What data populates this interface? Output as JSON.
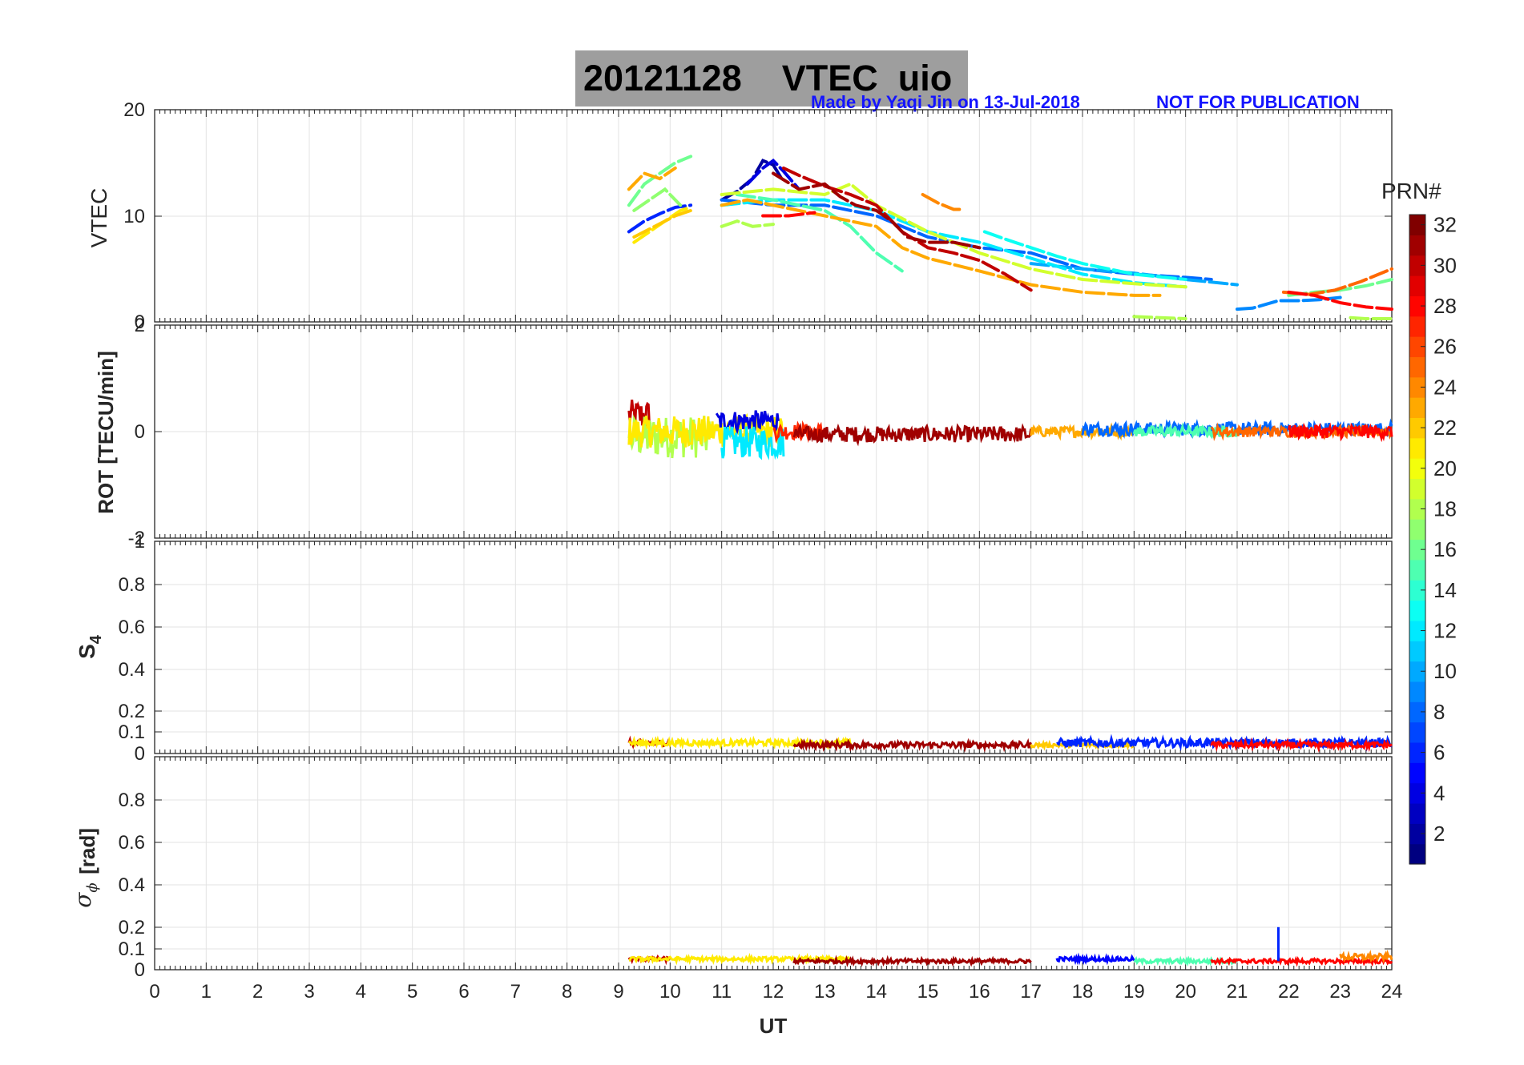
{
  "header": {
    "title": "20121128    VTEC  uio",
    "credit": "Made by Yaqi Jin on 13-Jul-2018",
    "notice": "NOT FOR PUBLICATION",
    "credit_color": "#1414ff",
    "title_box_color": "#9e9e9e"
  },
  "chart_data": {
    "type": "line",
    "description_colorbar": "color encodes GPS PRN number (jet colormap)",
    "xlabel": "UT",
    "xlim": [
      0,
      24
    ],
    "xticks": [
      "0",
      "1",
      "2",
      "3",
      "4",
      "5",
      "6",
      "7",
      "8",
      "9",
      "10",
      "11",
      "12",
      "13",
      "14",
      "15",
      "16",
      "17",
      "18",
      "19",
      "20",
      "21",
      "22",
      "23",
      "24"
    ],
    "colorbar": {
      "label": "PRN#",
      "range": [
        1,
        32
      ],
      "ticks": [
        "2",
        "4",
        "6",
        "8",
        "10",
        "12",
        "14",
        "16",
        "18",
        "20",
        "22",
        "24",
        "26",
        "28",
        "30",
        "32"
      ],
      "colormap": "jet"
    },
    "panels": [
      {
        "name": "VTEC",
        "ylabel": "VTEC",
        "ylim": [
          0,
          20
        ],
        "yticks": [
          "0",
          "10",
          "20"
        ],
        "grid": true,
        "series": [
          {
            "prn": 2,
            "x": [
              11.0,
              11.3,
              11.6,
              11.8,
              12.0,
              12.2
            ],
            "y": [
              11.5,
              12.3,
              13.5,
              15.2,
              14.8,
              13.2
            ]
          },
          {
            "prn": 4,
            "x": [
              11.5,
              11.8,
              12.0,
              12.2,
              12.5
            ],
            "y": [
              13.0,
              14.5,
              15.2,
              14.2,
              12.5
            ]
          },
          {
            "prn": 6,
            "x": [
              9.2,
              9.5,
              9.8,
              10.1,
              10.4
            ],
            "y": [
              8.5,
              9.5,
              10.2,
              10.8,
              11.0
            ]
          },
          {
            "prn": 8,
            "x": [
              11.0,
              12.0,
              13.0,
              14.0,
              15.0,
              16.0,
              17.0,
              18.0,
              19.0,
              20.0,
              20.5
            ],
            "y": [
              11.5,
              11.0,
              11.0,
              10.0,
              8.0,
              7.0,
              6.5,
              5.0,
              4.5,
              4.2,
              4.0
            ]
          },
          {
            "prn": 9,
            "x": [
              21.0,
              21.3,
              21.8,
              22.2,
              22.6,
              23.0
            ],
            "y": [
              1.2,
              1.3,
              2.0,
              2.0,
              2.1,
              2.3
            ]
          },
          {
            "prn": 10,
            "x": [
              17.0,
              18.0,
              19.0,
              20.0,
              21.0
            ],
            "y": [
              5.5,
              5.0,
              4.6,
              4.0,
              3.5
            ]
          },
          {
            "prn": 12,
            "x": [
              11.0,
              12.0,
              13.0,
              14.0,
              15.0,
              16.0,
              17.0,
              18.0,
              19.0,
              20.0
            ],
            "y": [
              11.0,
              11.5,
              11.5,
              10.5,
              8.5,
              7.5,
              6.0,
              4.5,
              3.7,
              3.3
            ]
          },
          {
            "prn": 13,
            "x": [
              16.1,
              16.5,
              17.0,
              17.5,
              18.0,
              19.0,
              20.0
            ],
            "y": [
              8.5,
              7.8,
              7.0,
              6.2,
              5.5,
              4.5,
              4.0
            ]
          },
          {
            "prn": 15,
            "x": [
              11.3,
              12.0,
              13.0,
              13.5,
              14.0,
              14.5
            ],
            "y": [
              12.0,
              11.5,
              10.5,
              9.0,
              6.5,
              4.8
            ]
          },
          {
            "prn": 16,
            "x": [
              9.2,
              9.5,
              9.8,
              10.1,
              10.4
            ],
            "y": [
              11.0,
              13.0,
              14.0,
              15.0,
              15.6
            ]
          },
          {
            "prn": 17,
            "x": [
              9.3,
              9.6,
              9.9,
              10.2
            ],
            "y": [
              10.5,
              11.5,
              12.5,
              11.0
            ]
          },
          {
            "prn": 18,
            "x": [
              11.0,
              11.3,
              11.6,
              12.0
            ],
            "y": [
              9.0,
              9.5,
              9.0,
              9.2
            ]
          },
          {
            "prn": 18,
            "x": [
              19.0,
              19.5,
              20.0
            ],
            "y": [
              0.5,
              0.4,
              0.3
            ]
          },
          {
            "prn": 18,
            "x": [
              23.2,
              23.5,
              24.0
            ],
            "y": [
              0.4,
              0.3,
              0.3
            ]
          },
          {
            "prn": 19,
            "x": [
              11.0,
              12.0,
              13.0,
              13.5,
              14.0,
              15.0,
              16.0,
              17.0,
              18.0,
              19.0,
              20.0
            ],
            "y": [
              12.0,
              12.5,
              12.0,
              13.0,
              11.0,
              8.5,
              6.5,
              5.0,
              4.0,
              3.6,
              3.3
            ]
          },
          {
            "prn": 16,
            "x": [
              22.0,
              22.5,
              23.0,
              23.5,
              24.0
            ],
            "y": [
              2.5,
              2.8,
              3.0,
              3.4,
              4.0
            ]
          },
          {
            "prn": 21,
            "x": [
              9.3,
              9.6,
              9.9,
              10.2,
              10.4
            ],
            "y": [
              7.5,
              8.5,
              9.5,
              10.5,
              10.8
            ]
          },
          {
            "prn": 22,
            "x": [
              9.3,
              9.7,
              10.1,
              10.4
            ],
            "y": [
              8.0,
              9.0,
              10.0,
              10.5
            ]
          },
          {
            "prn": 23,
            "x": [
              9.2,
              9.5,
              9.8,
              10.1
            ],
            "y": [
              12.5,
              14.0,
              13.5,
              14.5
            ]
          },
          {
            "prn": 23,
            "x": [
              11.0,
              11.5,
              12.0,
              13.0,
              14.0,
              14.5,
              15.0,
              16.0,
              17.0,
              18.0,
              19.0,
              19.5
            ],
            "y": [
              11.0,
              11.5,
              11.0,
              10.0,
              9.0,
              7.0,
              6.0,
              4.8,
              3.5,
              2.8,
              2.5,
              2.5
            ]
          },
          {
            "prn": 24,
            "x": [
              14.9,
              15.2,
              15.5,
              15.7
            ],
            "y": [
              12.0,
              11.2,
              10.6,
              10.6
            ]
          },
          {
            "prn": 25,
            "x": [
              21.9,
              22.4,
              22.9,
              23.4,
              24.0
            ],
            "y": [
              2.8,
              2.6,
              3.0,
              3.8,
              5.0
            ]
          },
          {
            "prn": 28,
            "x": [
              11.8,
              12.3,
              12.8
            ],
            "y": [
              10.0,
              10.0,
              10.3
            ]
          },
          {
            "prn": 28,
            "x": [
              22.0,
              22.5,
              23.0,
              23.5,
              24.0
            ],
            "y": [
              2.8,
              2.5,
              1.8,
              1.4,
              1.2
            ]
          },
          {
            "prn": 30,
            "x": [
              12.2,
              12.5,
              13.0,
              13.5,
              14.0,
              14.3,
              14.5,
              15.0,
              15.5,
              16.0,
              16.5,
              17.0
            ],
            "y": [
              14.5,
              13.8,
              12.8,
              12.0,
              11.0,
              9.5,
              8.5,
              7.0,
              6.5,
              5.8,
              4.5,
              3.0
            ]
          },
          {
            "prn": 31,
            "x": [
              12.0,
              12.5,
              13.0,
              13.3,
              13.6,
              14.0,
              14.3,
              14.6,
              15.0,
              15.5,
              16.0
            ],
            "y": [
              14.0,
              12.5,
              13.0,
              11.8,
              11.0,
              10.5,
              9.5,
              8.0,
              7.5,
              7.5,
              7.0
            ]
          }
        ]
      },
      {
        "name": "ROT",
        "ylabel": "ROT [TECU/min]",
        "ylim": [
          -2,
          2
        ],
        "yticks": [
          "-2",
          "0",
          "2"
        ],
        "grid": true,
        "series_summary": [
          {
            "prn": 30,
            "x": [
              9.2,
              9.6
            ],
            "y_center": 0.3,
            "spread": 0.6
          },
          {
            "prn": 18,
            "x": [
              9.2,
              10.8
            ],
            "y_center": -0.1,
            "spread": 0.8
          },
          {
            "prn": 21,
            "x": [
              9.2,
              12.2
            ],
            "y_center": 0.0,
            "spread": 0.6
          },
          {
            "prn": 4,
            "x": [
              10.9,
              12.1
            ],
            "y_center": 0.2,
            "spread": 0.4
          },
          {
            "prn": 12,
            "x": [
              11.0,
              12.2
            ],
            "y_center": -0.2,
            "spread": 0.6
          },
          {
            "prn": 27,
            "x": [
              12.0,
              13.0
            ],
            "y_center": 0.0,
            "spread": 0.3
          },
          {
            "prn": 31,
            "x": [
              12.4,
              17.0
            ],
            "y_center": -0.05,
            "spread": 0.3
          },
          {
            "prn": 23,
            "x": [
              17.0,
              19.0
            ],
            "y_center": 0.0,
            "spread": 0.2
          },
          {
            "prn": 8,
            "x": [
              18.0,
              24.0
            ],
            "y_center": 0.05,
            "spread": 0.25
          },
          {
            "prn": 15,
            "x": [
              19.0,
              21.0
            ],
            "y_center": 0.0,
            "spread": 0.2
          },
          {
            "prn": 25,
            "x": [
              20.5,
              24.0
            ],
            "y_center": 0.0,
            "spread": 0.2
          },
          {
            "prn": 28,
            "x": [
              22.0,
              24.0
            ],
            "y_center": 0.0,
            "spread": 0.25
          }
        ]
      },
      {
        "name": "S4",
        "ylabel": "S",
        "ylabel_subscript": "4",
        "ylim": [
          0,
          1
        ],
        "yticks": [
          "0",
          "0.1",
          "0.2",
          "0.4",
          "0.6",
          "0.8",
          "1"
        ],
        "grid": true,
        "series_summary": [
          {
            "prn": 30,
            "x": [
              9.2,
              10.0
            ],
            "y_center": 0.05,
            "spread": 0.03
          },
          {
            "prn": 21,
            "x": [
              9.2,
              13.5
            ],
            "y_center": 0.05,
            "spread": 0.03
          },
          {
            "prn": 31,
            "x": [
              12.4,
              17.0
            ],
            "y_center": 0.04,
            "spread": 0.03
          },
          {
            "prn": 22,
            "x": [
              17.0,
              19.0
            ],
            "y_center": 0.04,
            "spread": 0.02
          },
          {
            "prn": 6,
            "x": [
              17.5,
              24.0
            ],
            "y_center": 0.05,
            "spread": 0.04
          },
          {
            "prn": 28,
            "x": [
              20.5,
              24.0
            ],
            "y_center": 0.04,
            "spread": 0.03
          }
        ]
      },
      {
        "name": "sigma_phi",
        "ylabel": "[rad]",
        "ylim": [
          0,
          1
        ],
        "yticks": [
          "0",
          "0.1",
          "0.2",
          "0.4",
          "0.6",
          "0.8"
        ],
        "grid": true,
        "series_summary": [
          {
            "prn": 30,
            "x": [
              9.2,
              10.0
            ],
            "y_center": 0.05,
            "spread": 0.02
          },
          {
            "prn": 21,
            "x": [
              9.2,
              13.5
            ],
            "y_center": 0.05,
            "spread": 0.02
          },
          {
            "prn": 31,
            "x": [
              12.4,
              17.0
            ],
            "y_center": 0.04,
            "spread": 0.02
          },
          {
            "prn": 5,
            "x": [
              17.5,
              19.0
            ],
            "y_center": 0.05,
            "spread": 0.02
          },
          {
            "prn": 15,
            "x": [
              19.0,
              21.0
            ],
            "y_center": 0.04,
            "spread": 0.02
          },
          {
            "prn": 28,
            "x": [
              20.5,
              24.0
            ],
            "y_center": 0.04,
            "spread": 0.02
          },
          {
            "prn": 24,
            "x": [
              23.0,
              24.0
            ],
            "y_center": 0.06,
            "spread": 0.03
          }
        ],
        "spike": {
          "prn": 6,
          "x": 21.8,
          "y": 0.2
        }
      }
    ]
  }
}
